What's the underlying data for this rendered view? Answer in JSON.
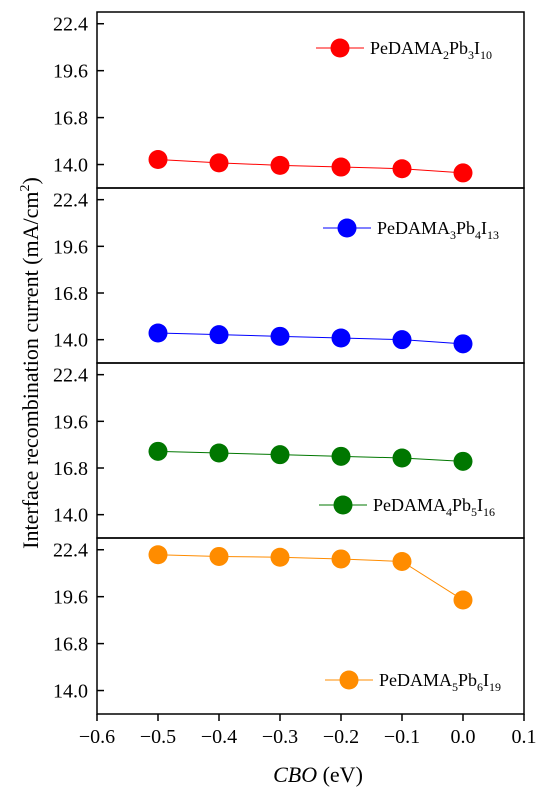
{
  "chart_data": {
    "type": "scatter",
    "x_values": [
      -0.5,
      -0.4,
      -0.3,
      -0.2,
      -0.1,
      0.0
    ],
    "xlim": [
      -0.6,
      0.1
    ],
    "xticks": [
      -0.6,
      -0.5,
      -0.4,
      -0.3,
      -0.2,
      -0.1,
      0.0,
      0.1
    ],
    "x_tick_labels": [
      "−0.6",
      "−0.5",
      "−0.4",
      "−0.3",
      "−0.2",
      "−0.1",
      "0.0",
      "0.1"
    ],
    "xlabel_italic": "CBO",
    "xlabel_rest": " (eV)",
    "ylabel": "Interface recombination current (mA/cm",
    "ylabel_sup": "2",
    "ylabel_close": ")",
    "ylim": [
      12.6,
      23.1
    ],
    "yticks": [
      14.0,
      16.8,
      19.6,
      22.4
    ],
    "y_tick_labels": [
      "14.0",
      "16.8",
      "19.6",
      "22.4"
    ],
    "grid": false,
    "legend_placement": "top-right for the first three panels, bottom-right for the fourth",
    "series": [
      {
        "name": "PeDAMA2Pb3I10",
        "legend_parts": [
          "PeDAMA",
          "2",
          "Pb",
          "3",
          "I",
          "10"
        ],
        "color": "#ff0000",
        "values": [
          14.3,
          14.1,
          13.95,
          13.85,
          13.75,
          13.5
        ]
      },
      {
        "name": "PeDAMA3Pb4I13",
        "legend_parts": [
          "PeDAMA",
          "3",
          "Pb",
          "4",
          "I",
          "13"
        ],
        "color": "#0000ff",
        "values": [
          14.4,
          14.3,
          14.2,
          14.1,
          14.0,
          13.75
        ]
      },
      {
        "name": "PeDAMA4Pb5I16",
        "legend_parts": [
          "PeDAMA",
          "4",
          "Pb",
          "5",
          "I",
          "16"
        ],
        "color": "#007700",
        "values": [
          17.8,
          17.7,
          17.6,
          17.5,
          17.4,
          17.2
        ]
      },
      {
        "name": "PeDAMA5Pb6I19",
        "legend_parts": [
          "PeDAMA",
          "5",
          "Pb",
          "6",
          "I",
          "19"
        ],
        "color": "#ff8c00",
        "values": [
          22.1,
          22.0,
          21.95,
          21.85,
          21.7,
          19.4
        ]
      }
    ]
  }
}
